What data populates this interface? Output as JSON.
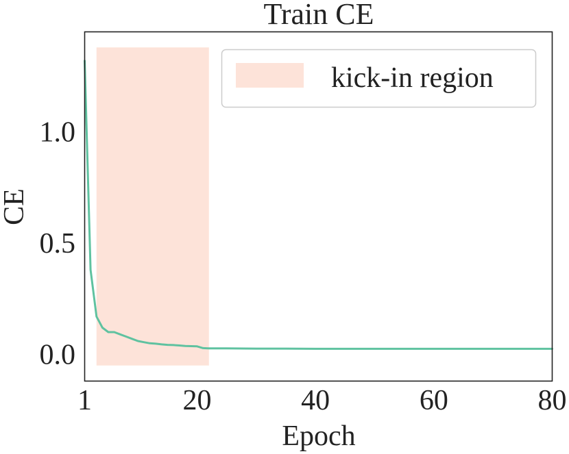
{
  "chart_data": {
    "type": "line",
    "title": "Train CE",
    "xlabel": "Epoch",
    "ylabel": "CE",
    "xlim": [
      1,
      80
    ],
    "ylim": [
      -0.12,
      1.45
    ],
    "xticks": [
      1,
      20,
      40,
      60,
      80
    ],
    "xtick_labels": [
      "1",
      "20",
      "40",
      "60",
      "80"
    ],
    "yticks": [
      0.0,
      0.5,
      1.0
    ],
    "ytick_labels": [
      "0.0",
      "0.5",
      "1.0"
    ],
    "grid": false,
    "legend_position": "top-right",
    "shaded_region": {
      "label": "kick-in region",
      "x_start": 3,
      "x_end": 22,
      "y_start": -0.05,
      "y_end": 1.38,
      "color": "#fde3d9"
    },
    "series": [
      {
        "color": "#5fc2a0",
        "x": [
          1,
          2,
          3,
          4,
          5,
          6,
          7,
          8,
          9,
          10,
          11,
          12,
          13,
          14,
          15,
          16,
          17,
          18,
          19,
          20,
          21,
          22,
          25,
          30,
          35,
          40,
          45,
          50,
          55,
          60,
          65,
          70,
          75,
          80
        ],
        "y": [
          1.32,
          0.38,
          0.17,
          0.12,
          0.1,
          0.1,
          0.09,
          0.08,
          0.07,
          0.06,
          0.055,
          0.05,
          0.048,
          0.045,
          0.043,
          0.042,
          0.04,
          0.038,
          0.037,
          0.036,
          0.028,
          0.027,
          0.027,
          0.026,
          0.026,
          0.025,
          0.025,
          0.025,
          0.025,
          0.025,
          0.025,
          0.025,
          0.025,
          0.025
        ]
      }
    ]
  }
}
